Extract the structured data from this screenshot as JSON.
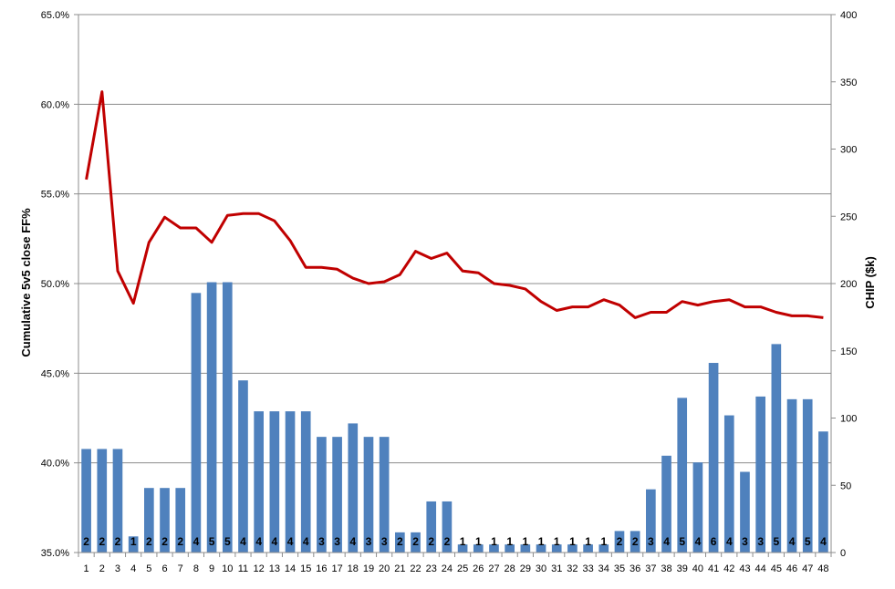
{
  "chart_data": {
    "type": "bar+line",
    "title": "",
    "x": [
      "1",
      "2",
      "3",
      "4",
      "5",
      "6",
      "7",
      "8",
      "9",
      "10",
      "11",
      "12",
      "13",
      "14",
      "15",
      "16",
      "17",
      "18",
      "19",
      "20",
      "21",
      "22",
      "23",
      "24",
      "25",
      "26",
      "27",
      "28",
      "29",
      "30",
      "31",
      "32",
      "33",
      "34",
      "35",
      "36",
      "37",
      "38",
      "39",
      "40",
      "41",
      "42",
      "43",
      "44",
      "45",
      "46",
      "47",
      "48"
    ],
    "ylabel_left": "Cumulative 5v5 close FF%",
    "ylabel_right": "CHIP ($k)",
    "ylim_left": [
      35.0,
      65.0
    ],
    "ylim_right": [
      0,
      400
    ],
    "yticks_left": [
      "35.0%",
      "40.0%",
      "45.0%",
      "50.0%",
      "55.0%",
      "60.0%",
      "65.0%"
    ],
    "yticks_right": [
      "0",
      "50",
      "100",
      "150",
      "200",
      "250",
      "300",
      "350",
      "400"
    ],
    "grid": true,
    "bar_color": "#4f81bd",
    "line_color": "#c00000",
    "series": [
      {
        "type": "bar",
        "axis": "right",
        "values": [
          77,
          77,
          77,
          12,
          48,
          48,
          48,
          193,
          201,
          201,
          128,
          105,
          105,
          105,
          105,
          86,
          86,
          96,
          86,
          86,
          15,
          15,
          38,
          38,
          6,
          6,
          6,
          6,
          6,
          6,
          6,
          6,
          6,
          6,
          16,
          16,
          47,
          72,
          115,
          67,
          141,
          102,
          60,
          116,
          155,
          114,
          114,
          90
        ],
        "labels": [
          "2",
          "2",
          "2",
          "1",
          "2",
          "2",
          "2",
          "4",
          "5",
          "5",
          "4",
          "4",
          "4",
          "4",
          "4",
          "3",
          "3",
          "4",
          "3",
          "3",
          "2",
          "2",
          "2",
          "2",
          "1",
          "1",
          "1",
          "1",
          "1",
          "1",
          "1",
          "1",
          "1",
          "1",
          "2",
          "2",
          "3",
          "4",
          "5",
          "4",
          "6",
          "4",
          "3",
          "3",
          "5",
          "4",
          "5",
          "4"
        ]
      },
      {
        "type": "line",
        "axis": "left",
        "values": [
          55.8,
          60.7,
          50.7,
          48.9,
          52.3,
          53.7,
          53.1,
          53.1,
          52.3,
          53.8,
          53.9,
          53.9,
          53.5,
          52.4,
          50.9,
          50.9,
          50.8,
          50.3,
          50.0,
          50.1,
          50.5,
          51.8,
          51.4,
          51.7,
          50.7,
          50.6,
          50.0,
          49.9,
          49.7,
          49.0,
          48.5,
          48.7,
          48.7,
          49.1,
          48.8,
          48.1,
          48.4,
          48.4,
          49.0,
          48.8,
          49.0,
          49.1,
          48.7,
          48.7,
          48.4,
          48.2,
          48.2,
          48.1
        ]
      }
    ]
  }
}
